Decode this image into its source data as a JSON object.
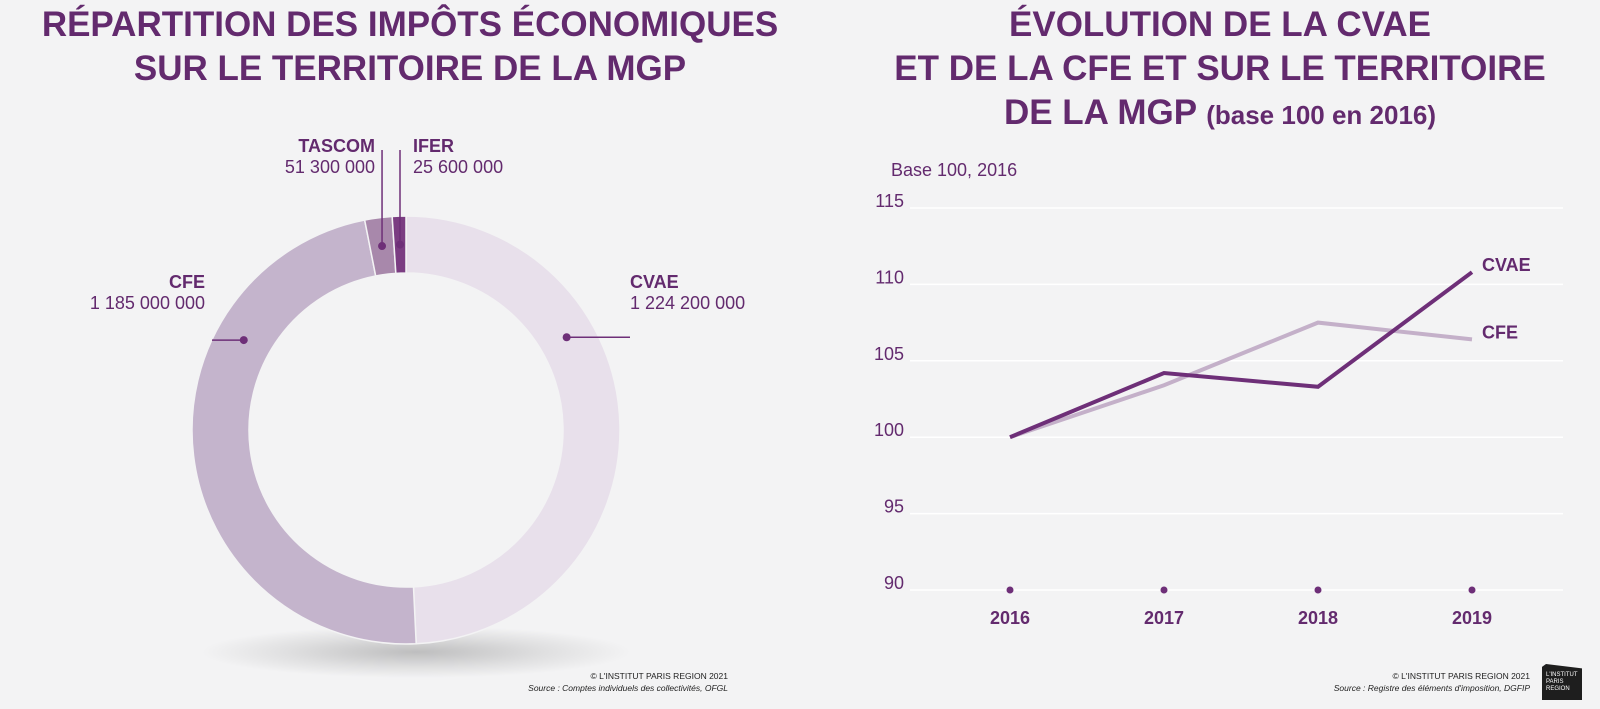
{
  "left": {
    "title_line1": "RÉPARTITION DES IMPÔTS ÉCONOMIQUES",
    "title_line2": "SUR LE TERRITOIRE DE LA MGP",
    "copyright": "© L'INSTITUT PARIS REGION 2021",
    "source": "Source : Comptes individuels des collectivités, OFGL"
  },
  "right": {
    "title_line1": "ÉVOLUTION DE LA CVAE",
    "title_line2": "ET DE LA CFE ET SUR LE TERRITOIRE",
    "title_line3": "DE LA MGP",
    "title_suffix": "(base 100 en 2016)",
    "copyright": "© L'INSTITUT PARIS REGION 2021",
    "source": "Source : Registre des éléments d'imposition, DGFIP"
  },
  "logo": {
    "line1": "L'INSTITUT",
    "line2": "PARIS",
    "line3": "REGION"
  },
  "chart_data": [
    {
      "type": "pie",
      "variant": "donut",
      "slices": [
        {
          "name": "CVAE",
          "value": 1224200000,
          "label": "1 224 200 000",
          "color": "#e8e0eb"
        },
        {
          "name": "CFE",
          "value": 1185000000,
          "label": "1 185 000 000",
          "color": "#c4b4cc"
        },
        {
          "name": "TASCOM",
          "value": 51300000,
          "label": "51 300 000",
          "color": "#a888ab"
        },
        {
          "name": "IFER",
          "value": 25600000,
          "label": "25 600 000",
          "color": "#7b3d82"
        }
      ]
    },
    {
      "type": "line",
      "ylabel": "Base 100, 2016",
      "x": [
        "2016",
        "2017",
        "2018",
        "2019"
      ],
      "ylim": [
        90,
        115
      ],
      "yticks": [
        90,
        95,
        100,
        105,
        110,
        115
      ],
      "grid": true,
      "series": [
        {
          "name": "CVAE",
          "values": [
            100,
            104.2,
            103.3,
            110.8
          ],
          "color": "#6e2f78"
        },
        {
          "name": "CFE",
          "values": [
            100,
            103.4,
            107.5,
            106.4
          ],
          "color": "#c4b0c9"
        }
      ]
    }
  ]
}
